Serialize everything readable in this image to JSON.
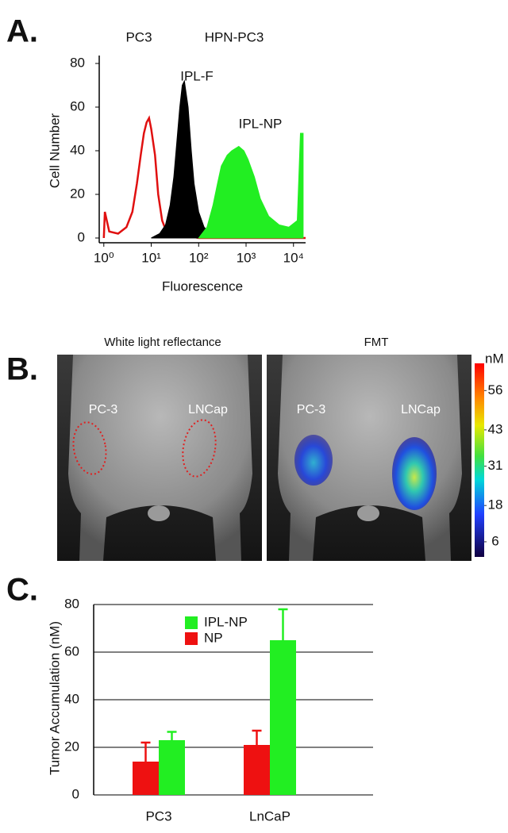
{
  "panel_labels": [
    "A.",
    "B.",
    "C."
  ],
  "images": {
    "left_title": "White light reflectance",
    "right_title": "FMT",
    "left_labels": [
      "PC-3",
      "LNCap"
    ],
    "right_labels": [
      "PC-3",
      "LNCap"
    ]
  },
  "chart_data": [
    {
      "type": "line",
      "annotations": [
        "PC3",
        "HPN-PC3"
      ],
      "x_label": "Fluorescence",
      "y_label": "Cell Number",
      "xscale": "log",
      "xlim": [
        0.8,
        18000
      ],
      "xticks": [
        {
          "value": 1,
          "label": "10⁰"
        },
        {
          "value": 10,
          "label": "10¹"
        },
        {
          "value": 100,
          "label": "10²"
        },
        {
          "value": 1000,
          "label": "10³"
        },
        {
          "value": 10000,
          "label": "10⁴"
        }
      ],
      "ylim": [
        0,
        80
      ],
      "yticks": [
        0,
        20,
        40,
        60,
        80
      ],
      "series": [
        {
          "color": "#e01010",
          "fill": false,
          "x": [
            1,
            1.05,
            1.3,
            2,
            3,
            4,
            5,
            6,
            7,
            8,
            9,
            10,
            12,
            14,
            17,
            20,
            30,
            60,
            100,
            200,
            18000
          ],
          "values": [
            0,
            12,
            3,
            2,
            5,
            12,
            25,
            38,
            48,
            53,
            55,
            50,
            38,
            20,
            8,
            4,
            2,
            1,
            0,
            0,
            0
          ]
        },
        {
          "name": "IPL-F",
          "color": "#000000",
          "fill": true,
          "x": [
            10,
            15,
            20,
            25,
            30,
            35,
            40,
            45,
            50,
            60,
            70,
            80,
            100,
            130,
            180,
            250
          ],
          "values": [
            0,
            2,
            6,
            15,
            28,
            45,
            60,
            70,
            72,
            60,
            40,
            25,
            12,
            5,
            2,
            0
          ]
        },
        {
          "name": "IPL-NP",
          "color": "#22ee22",
          "fill": true,
          "x": [
            100,
            150,
            200,
            250,
            300,
            400,
            500,
            700,
            900,
            1100,
            1500,
            2000,
            3000,
            5000,
            8000,
            12000,
            14000,
            16000,
            16000
          ],
          "values": [
            0,
            5,
            15,
            25,
            33,
            38,
            40,
            42,
            40,
            36,
            28,
            18,
            10,
            6,
            5,
            8,
            48,
            48,
            0
          ]
        }
      ]
    },
    {
      "type": "colorbar",
      "unit": "nM",
      "lim": [
        1,
        65
      ],
      "ticks": [
        6,
        18,
        31,
        43,
        56
      ]
    },
    {
      "type": "bar",
      "y_label": "Tumor Accumulation (nM)",
      "categories": [
        "PC3",
        "LnCaP"
      ],
      "ylim": [
        0,
        80
      ],
      "yticks": [
        0,
        20,
        40,
        60,
        80
      ],
      "grid": true,
      "legend": "upper left",
      "series": [
        {
          "name": "IPL-NP",
          "color": "#22ee22",
          "values": [
            23,
            65
          ],
          "errors": [
            3.5,
            13
          ]
        },
        {
          "name": "NP",
          "color": "#ee1111",
          "values": [
            14,
            21
          ],
          "errors": [
            8,
            6
          ]
        }
      ]
    }
  ]
}
